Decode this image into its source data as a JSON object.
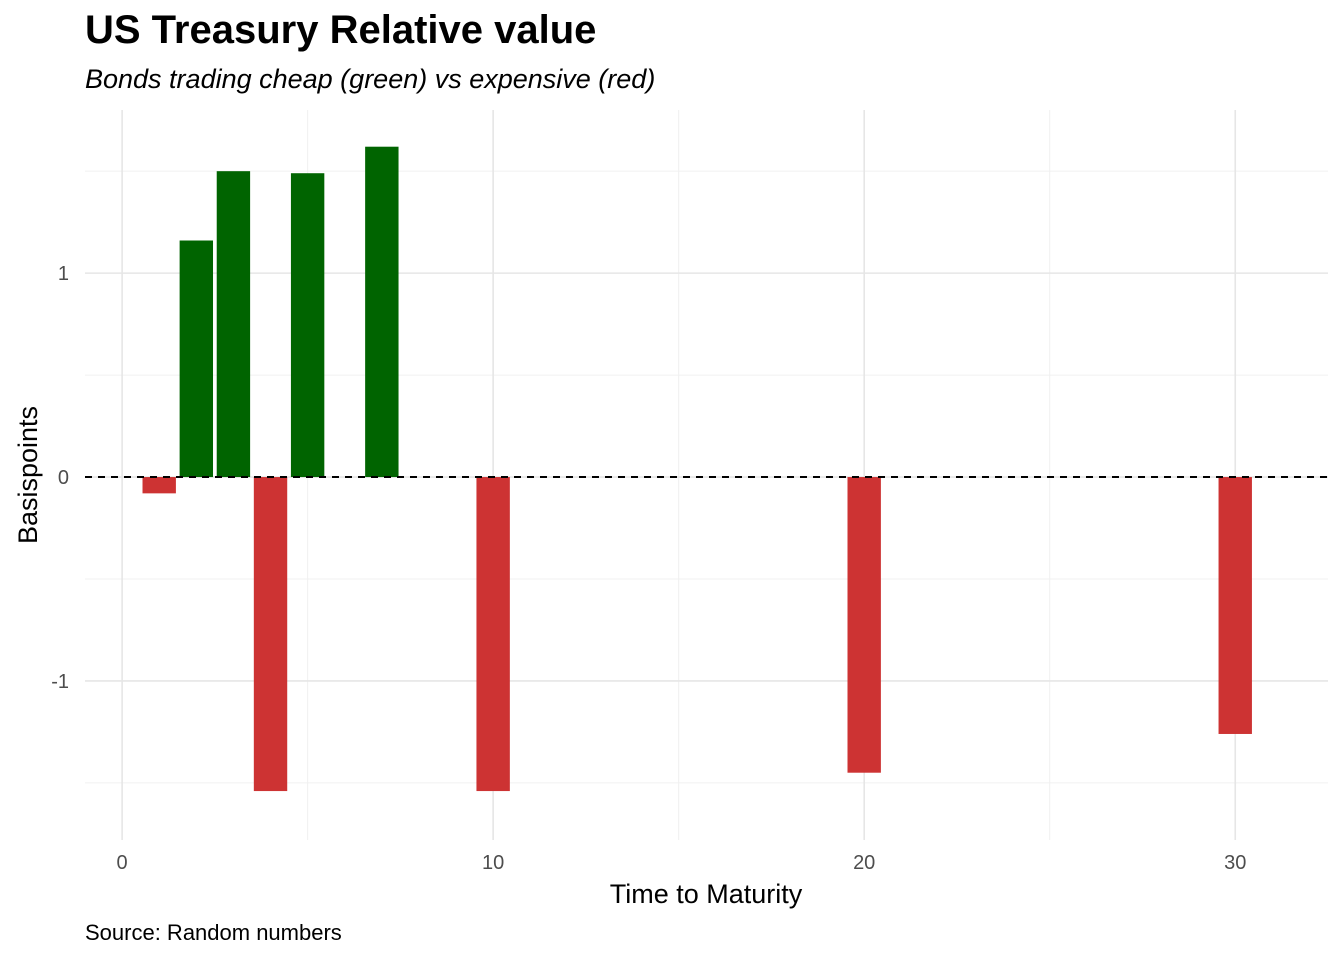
{
  "chart_data": {
    "type": "bar",
    "title": "US Treasury Relative value",
    "subtitle": "Bonds trading cheap (green) vs expensive (red)",
    "caption": "Source: Random numbers",
    "xlabel": "Time to Maturity",
    "ylabel": "Basispoints",
    "xlim": [
      -1,
      32.5
    ],
    "ylim": [
      -1.78,
      1.8
    ],
    "x_ticks": [
      0,
      10,
      20,
      30
    ],
    "y_ticks": [
      -1,
      0,
      1
    ],
    "x_tick_labels": [
      "0",
      "10",
      "20",
      "30"
    ],
    "y_tick_labels": [
      "-1",
      "0",
      "1"
    ],
    "grid": true,
    "zero_line": "dashed",
    "bar_width": 0.9,
    "colors": {
      "cheap": "#006400",
      "expensive": "#cd3333"
    },
    "x": [
      1,
      2,
      3,
      4,
      5,
      7,
      10,
      20,
      30
    ],
    "values": [
      -0.08,
      1.16,
      1.5,
      -1.54,
      1.49,
      1.62,
      -1.54,
      -1.45,
      -1.26
    ]
  }
}
